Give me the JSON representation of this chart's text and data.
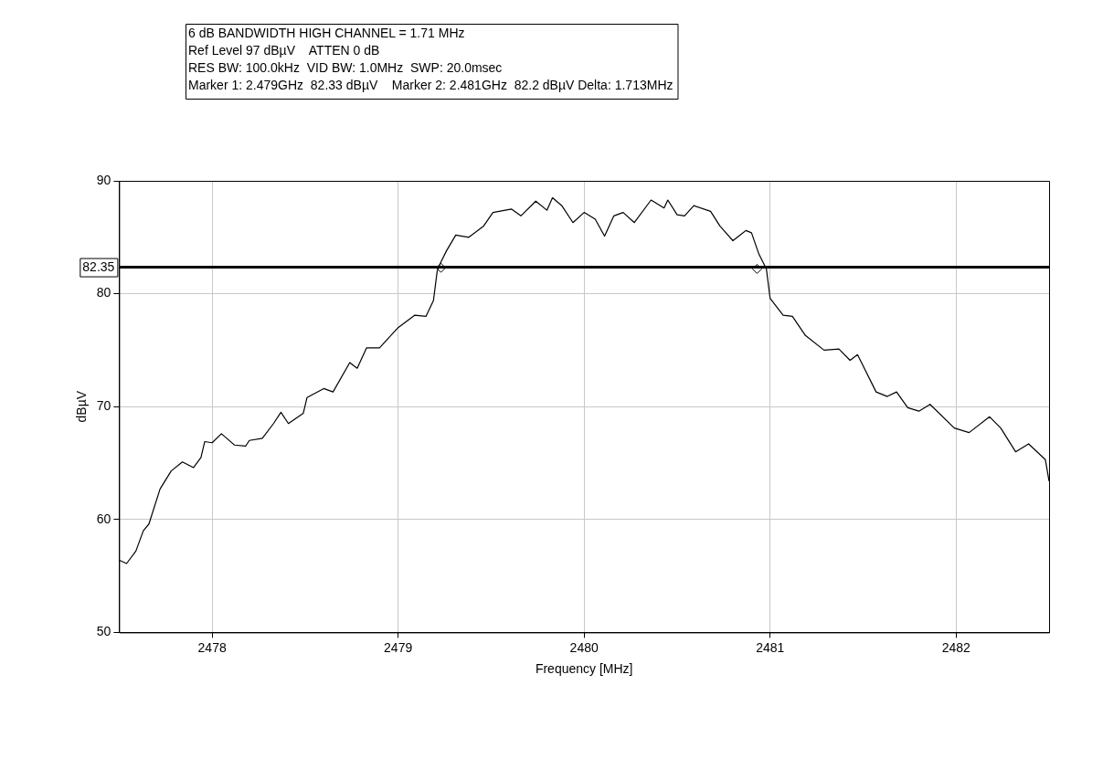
{
  "chart_data": {
    "type": "line",
    "title": "6 dB BANDWIDTH HIGH CHANNEL = 1.71 MHz",
    "annotations": [
      "Ref Level 97 dBµV    ATTEN 0 dB",
      "RES BW: 100.0kHz  VID BW: 1.0MHz  SWP: 20.0msec",
      "Marker 1: 2.479GHz  82.33 dBµV    Marker 2: 2.481GHz  82.2 dBµV Delta: 1.713MHz"
    ],
    "xlabel": "Frequency [MHz]",
    "ylabel": "dBµV",
    "xlim": [
      2477.5,
      2482.5
    ],
    "xticks": [
      2478,
      2479,
      2480,
      2481,
      2482
    ],
    "ylim": [
      50,
      90
    ],
    "yticks": [
      50,
      60,
      70,
      80,
      90
    ],
    "grid": true,
    "legend": false,
    "ref_lines": [
      {
        "axis": "y",
        "value": 82.35,
        "label": "82.35",
        "color": "#000000"
      }
    ],
    "series": [
      {
        "type": "line",
        "color": "#000000",
        "marker": "none",
        "x": [
          2477.5,
          2477.54,
          2477.59,
          2477.63,
          2477.66,
          2477.72,
          2477.78,
          2477.84,
          2477.9,
          2477.94,
          2477.96,
          2478.0,
          2478.05,
          2478.12,
          2478.18,
          2478.2,
          2478.27,
          2478.33,
          2478.37,
          2478.41,
          2478.49,
          2478.51,
          2478.6,
          2478.65,
          2478.74,
          2478.78,
          2478.83,
          2478.9,
          2479.0,
          2479.09,
          2479.15,
          2479.19,
          2479.21,
          2479.23,
          2479.26,
          2479.31,
          2479.38,
          2479.46,
          2479.51,
          2479.61,
          2479.66,
          2479.74,
          2479.8,
          2479.83,
          2479.88,
          2479.94,
          2480.0,
          2480.06,
          2480.11,
          2480.16,
          2480.21,
          2480.27,
          2480.36,
          2480.43,
          2480.45,
          2480.5,
          2480.54,
          2480.59,
          2480.68,
          2480.73,
          2480.8,
          2480.87,
          2480.9,
          2480.94,
          2480.98,
          2481.0,
          2481.07,
          2481.12,
          2481.19,
          2481.29,
          2481.37,
          2481.43,
          2481.47,
          2481.57,
          2481.63,
          2481.68,
          2481.74,
          2481.8,
          2481.86,
          2481.99,
          2482.07,
          2482.18,
          2482.24,
          2482.32,
          2482.39,
          2482.48,
          2482.5
        ],
        "values": [
          56.4,
          56.1,
          57.2,
          59.0,
          59.6,
          62.7,
          64.3,
          65.1,
          64.6,
          65.5,
          66.9,
          66.8,
          67.6,
          66.6,
          66.5,
          67.0,
          67.2,
          68.5,
          69.5,
          68.5,
          69.4,
          70.8,
          71.6,
          71.3,
          73.9,
          73.4,
          75.2,
          75.2,
          77.0,
          78.1,
          78.0,
          79.4,
          82.0,
          82.8,
          83.8,
          85.2,
          85.0,
          86.0,
          87.2,
          87.5,
          86.9,
          88.2,
          87.4,
          88.5,
          87.8,
          86.3,
          87.2,
          86.6,
          85.1,
          86.9,
          87.2,
          86.3,
          88.3,
          87.6,
          88.3,
          87.0,
          86.9,
          87.8,
          87.3,
          86.0,
          84.7,
          85.6,
          85.4,
          83.5,
          82.2,
          79.6,
          78.1,
          78.0,
          76.3,
          75.0,
          75.1,
          74.1,
          74.6,
          71.3,
          70.9,
          71.3,
          69.9,
          69.6,
          70.2,
          68.1,
          67.7,
          69.1,
          68.1,
          66.0,
          66.7,
          65.3,
          63.4
        ]
      },
      {
        "type": "scatter",
        "color": "#000000",
        "marker": "diamond",
        "x": [
          2479.23,
          2480.93
        ],
        "values": [
          82.3,
          82.2
        ]
      }
    ]
  }
}
